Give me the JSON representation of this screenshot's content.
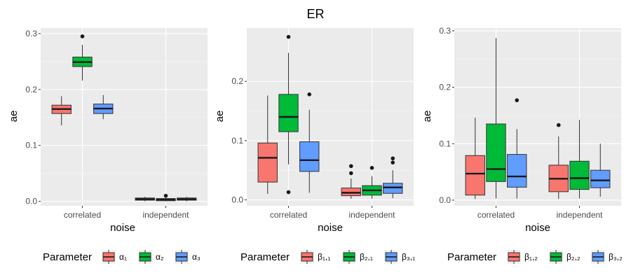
{
  "title": "ER",
  "chart_data": [
    {
      "type": "boxplot",
      "xlabel": "noise",
      "ylabel": "ae",
      "categories": [
        "correlated",
        "independent"
      ],
      "ylim": [
        -0.008,
        0.31
      ],
      "yticks": [
        {
          "v": 0.0,
          "label": "0.0"
        },
        {
          "v": 0.1,
          "label": "0.1"
        },
        {
          "v": 0.2,
          "label": "0.2"
        },
        {
          "v": 0.3,
          "label": "0.3"
        }
      ],
      "legend_title": "Parameter",
      "series": [
        {
          "name": "α₁",
          "color": "#F8766D",
          "boxes": [
            {
              "lower": 0.136,
              "q1": 0.157,
              "median": 0.165,
              "q3": 0.172,
              "upper": 0.188,
              "outliers": []
            },
            {
              "lower": 0.0,
              "q1": 0.002,
              "median": 0.004,
              "q3": 0.006,
              "upper": 0.008,
              "outliers": []
            }
          ]
        },
        {
          "name": "α₂",
          "color": "#00BA38",
          "boxes": [
            {
              "lower": 0.216,
              "q1": 0.241,
              "median": 0.249,
              "q3": 0.258,
              "upper": 0.28,
              "outliers": [
                0.295
              ]
            },
            {
              "lower": 0.0,
              "q1": 0.001,
              "median": 0.003,
              "q3": 0.005,
              "upper": 0.007,
              "outliers": [
                0.01
              ]
            }
          ]
        },
        {
          "name": "α₃",
          "color": "#619CFF",
          "boxes": [
            {
              "lower": 0.147,
              "q1": 0.157,
              "median": 0.166,
              "q3": 0.174,
              "upper": 0.19,
              "outliers": []
            },
            {
              "lower": 0.0,
              "q1": 0.002,
              "median": 0.004,
              "q3": 0.006,
              "upper": 0.008,
              "outliers": []
            }
          ]
        }
      ]
    },
    {
      "type": "boxplot",
      "xlabel": "noise",
      "ylabel": "ae",
      "categories": [
        "correlated",
        "independent"
      ],
      "ylim": [
        -0.01,
        0.29
      ],
      "yticks": [
        {
          "v": 0.0,
          "label": "0.0"
        },
        {
          "v": 0.1,
          "label": "0.1"
        },
        {
          "v": 0.2,
          "label": "0.2"
        }
      ],
      "legend_title": "Parameter",
      "series": [
        {
          "name": "β₁,₁",
          "color": "#F8766D",
          "boxes": [
            {
              "lower": 0.01,
              "q1": 0.03,
              "median": 0.071,
              "q3": 0.096,
              "upper": 0.176,
              "outliers": []
            },
            {
              "lower": 0.002,
              "q1": 0.007,
              "median": 0.012,
              "q3": 0.02,
              "upper": 0.036,
              "outliers": [
                0.045,
                0.057
              ]
            }
          ]
        },
        {
          "name": "β₂,₁",
          "color": "#00BA38",
          "boxes": [
            {
              "lower": 0.06,
              "q1": 0.115,
              "median": 0.14,
              "q3": 0.178,
              "upper": 0.248,
              "outliers": [
                0.013,
                0.275
              ]
            },
            {
              "lower": 0.002,
              "q1": 0.008,
              "median": 0.016,
              "q3": 0.024,
              "upper": 0.04,
              "outliers": [
                0.054
              ]
            }
          ]
        },
        {
          "name": "β₃,₁",
          "color": "#619CFF",
          "boxes": [
            {
              "lower": 0.012,
              "q1": 0.048,
              "median": 0.067,
              "q3": 0.098,
              "upper": 0.152,
              "outliers": [
                0.178
              ]
            },
            {
              "lower": 0.003,
              "q1": 0.011,
              "median": 0.021,
              "q3": 0.028,
              "upper": 0.05,
              "outliers": [
                0.063,
                0.07
              ]
            }
          ]
        }
      ]
    },
    {
      "type": "boxplot",
      "xlabel": "noise",
      "ylabel": "ae",
      "categories": [
        "correlated",
        "independent"
      ],
      "ylim": [
        -0.01,
        0.305
      ],
      "yticks": [
        {
          "v": 0.0,
          "label": "0.0"
        },
        {
          "v": 0.1,
          "label": "0.1"
        },
        {
          "v": 0.2,
          "label": "0.2"
        },
        {
          "v": 0.3,
          "label": "0.3"
        }
      ],
      "legend_title": "Parameter",
      "series": [
        {
          "name": "β₁,₂",
          "color": "#F8766D",
          "boxes": [
            {
              "lower": 0.002,
              "q1": 0.009,
              "median": 0.047,
              "q3": 0.079,
              "upper": 0.146,
              "outliers": []
            },
            {
              "lower": 0.002,
              "q1": 0.015,
              "median": 0.038,
              "q3": 0.062,
              "upper": 0.113,
              "outliers": [
                0.133
              ]
            }
          ]
        },
        {
          "name": "β₂,₂",
          "color": "#00BA38",
          "boxes": [
            {
              "lower": 0.003,
              "q1": 0.033,
              "median": 0.055,
              "q3": 0.135,
              "upper": 0.287,
              "outliers": []
            },
            {
              "lower": 0.003,
              "q1": 0.019,
              "median": 0.039,
              "q3": 0.069,
              "upper": 0.142,
              "outliers": []
            }
          ]
        },
        {
          "name": "β₃,₂",
          "color": "#619CFF",
          "boxes": [
            {
              "lower": 0.003,
              "q1": 0.023,
              "median": 0.042,
              "q3": 0.081,
              "upper": 0.126,
              "outliers": [
                0.177
              ]
            },
            {
              "lower": 0.006,
              "q1": 0.022,
              "median": 0.035,
              "q3": 0.053,
              "upper": 0.1,
              "outliers": []
            }
          ]
        }
      ]
    }
  ]
}
